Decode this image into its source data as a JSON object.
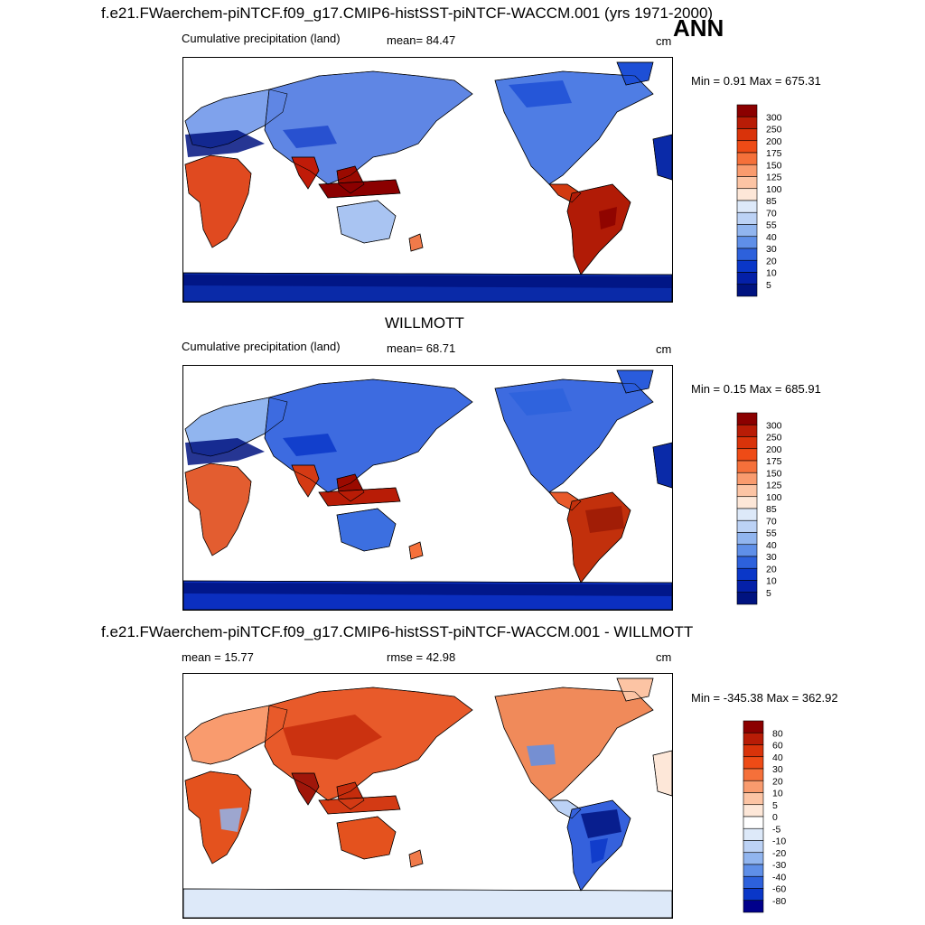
{
  "figure": {
    "season": "ANN"
  },
  "panels": [
    {
      "title": "f.e21.FWaerchem-piNTCF.f09_g17.CMIP6-histSST-piNTCF-WACCM.001 (yrs 1971-2000)",
      "left_label": "Cumulative precipitation (land)",
      "stat_label": "mean=  84.47",
      "unit": "cm",
      "minmax": "Min =   0.91 Max = 675.31",
      "colorbar": {
        "levels": [
          "300",
          "250",
          "200",
          "175",
          "150",
          "125",
          "100",
          "85",
          "70",
          "55",
          "40",
          "30",
          "20",
          "10",
          "5"
        ],
        "colors": [
          "#8b0000",
          "#b81c06",
          "#d9330a",
          "#ee4b16",
          "#f5703a",
          "#f99b6e",
          "#fcc4a4",
          "#fde7d8",
          "#dde9f9",
          "#bcd2f5",
          "#91b5ef",
          "#5f8fe8",
          "#2d61dc",
          "#0a37c8",
          "#0420a8",
          "#001380"
        ]
      },
      "field": "model"
    },
    {
      "title": "WILLMOTT",
      "left_label": "Cumulative precipitation (land)",
      "stat_label": "mean=  68.71",
      "unit": "cm",
      "minmax": "Min =   0.15 Max = 685.91",
      "colorbar": {
        "levels": [
          "300",
          "250",
          "200",
          "175",
          "150",
          "125",
          "100",
          "85",
          "70",
          "55",
          "40",
          "30",
          "20",
          "10",
          "5"
        ],
        "colors": [
          "#8b0000",
          "#b81c06",
          "#d9330a",
          "#ee4b16",
          "#f5703a",
          "#f99b6e",
          "#fcc4a4",
          "#fde7d8",
          "#dde9f9",
          "#bcd2f5",
          "#91b5ef",
          "#5f8fe8",
          "#2d61dc",
          "#0a37c8",
          "#0420a8",
          "#001380"
        ]
      },
      "field": "obs"
    },
    {
      "title": "f.e21.FWaerchem-piNTCF.f09_g17.CMIP6-histSST-piNTCF-WACCM.001 - WILLMOTT",
      "left_label": "mean =  15.77",
      "stat_label": "rmse =  42.98",
      "unit": "cm",
      "minmax": "Min = -345.38 Max = 362.92",
      "colorbar": {
        "levels": [
          "80",
          "60",
          "40",
          "30",
          "20",
          "10",
          "5",
          "0",
          "-5",
          "-10",
          "-20",
          "-30",
          "-40",
          "-60",
          "-80"
        ],
        "colors": [
          "#8b0000",
          "#b81c06",
          "#d9330a",
          "#ee4b16",
          "#f5703a",
          "#f99b6e",
          "#fcc4a4",
          "#fde7d8",
          "#ffffff",
          "#dde9f9",
          "#bcd2f5",
          "#91b5ef",
          "#5f8fe8",
          "#2d61dc",
          "#0a37c8",
          "#00008b"
        ]
      },
      "field": "diff"
    }
  ]
}
